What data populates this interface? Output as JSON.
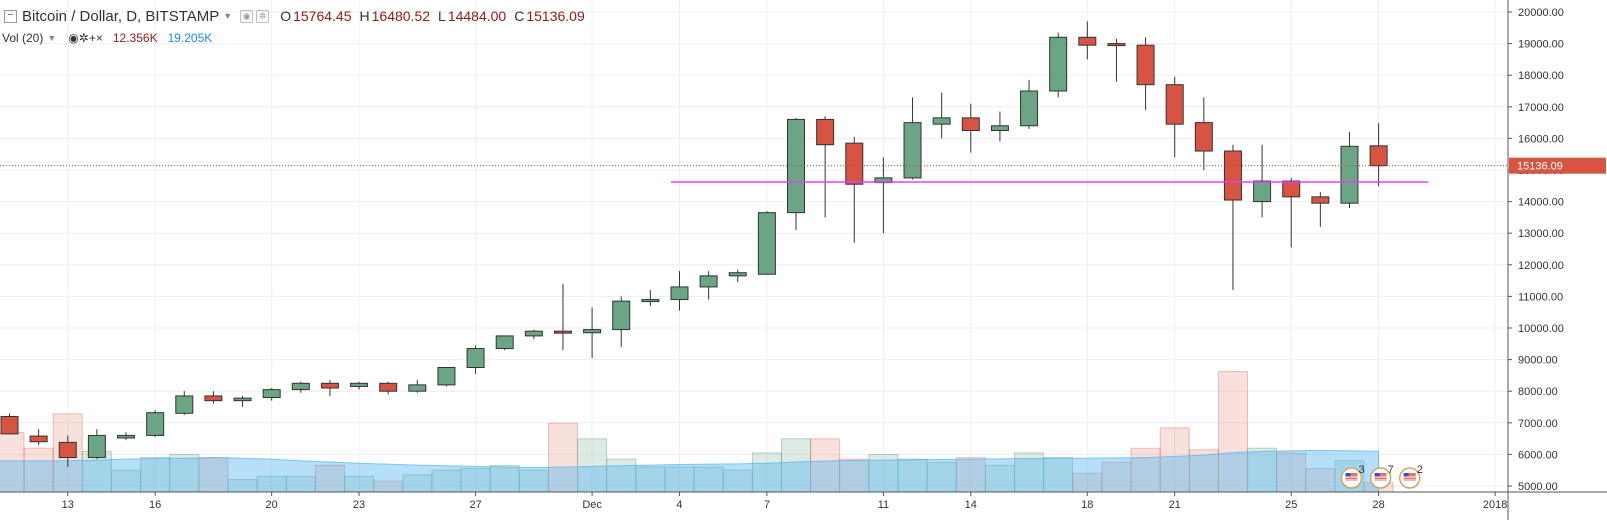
{
  "legend": {
    "symbol": "Bitcoin / Dollar, D, BITSTAMP",
    "open_label": "O",
    "open": "15764.45",
    "high_label": "H",
    "high": "16480.52",
    "low_label": "L",
    "low": "14484.00",
    "close_label": "C",
    "close": "15136.09"
  },
  "volume_legend": {
    "label": "Vol (20)",
    "value1": "12.356K",
    "value2": "19.205K"
  },
  "chart_data": {
    "type": "candlestick",
    "ylim": [
      4800,
      20300
    ],
    "y_ticks": [
      5000,
      6000,
      7000,
      8000,
      9000,
      10000,
      11000,
      12000,
      13000,
      14000,
      15000,
      16000,
      17000,
      18000,
      19000,
      20000
    ],
    "x_tick_labels": [
      {
        "label": "13",
        "day": 2
      },
      {
        "label": "16",
        "day": 5
      },
      {
        "label": "20",
        "day": 9
      },
      {
        "label": "23",
        "day": 12
      },
      {
        "label": "27",
        "day": 16
      },
      {
        "label": "Dec",
        "day": 20
      },
      {
        "label": "4",
        "day": 23
      },
      {
        "label": "7",
        "day": 26
      },
      {
        "label": "11",
        "day": 30
      },
      {
        "label": "14",
        "day": 33
      },
      {
        "label": "18",
        "day": 37
      },
      {
        "label": "21",
        "day": 40
      },
      {
        "label": "25",
        "day": 44
      },
      {
        "label": "28",
        "day": 47
      },
      {
        "label": "2018",
        "day": 51
      }
    ],
    "last_price": 15136.09,
    "last_price_label": "15136.09",
    "support_line": {
      "value": 14620,
      "from_day": 23,
      "to_day": 49
    },
    "up_color": "#6ba583",
    "down_color": "#d75442",
    "candles": [
      {
        "o": 7200,
        "h": 7300,
        "l": 6650,
        "c": 6650
      },
      {
        "o": 6580,
        "h": 6800,
        "l": 6300,
        "c": 6400
      },
      {
        "o": 6380,
        "h": 6600,
        "l": 5600,
        "c": 5900
      },
      {
        "o": 5900,
        "h": 6800,
        "l": 5850,
        "c": 6600
      },
      {
        "o": 6520,
        "h": 6700,
        "l": 6450,
        "c": 6600
      },
      {
        "o": 6600,
        "h": 7400,
        "l": 6550,
        "c": 7320
      },
      {
        "o": 7300,
        "h": 8000,
        "l": 7250,
        "c": 7850
      },
      {
        "o": 7850,
        "h": 8000,
        "l": 7600,
        "c": 7700
      },
      {
        "o": 7700,
        "h": 7850,
        "l": 7500,
        "c": 7780
      },
      {
        "o": 7800,
        "h": 8100,
        "l": 7700,
        "c": 8050
      },
      {
        "o": 8050,
        "h": 8300,
        "l": 7950,
        "c": 8250
      },
      {
        "o": 8250,
        "h": 8350,
        "l": 7850,
        "c": 8100
      },
      {
        "o": 8150,
        "h": 8300,
        "l": 8050,
        "c": 8250
      },
      {
        "o": 8250,
        "h": 8300,
        "l": 7900,
        "c": 8000
      },
      {
        "o": 8000,
        "h": 8350,
        "l": 7950,
        "c": 8200
      },
      {
        "o": 8200,
        "h": 8750,
        "l": 8150,
        "c": 8750
      },
      {
        "o": 8750,
        "h": 9450,
        "l": 8550,
        "c": 9350
      },
      {
        "o": 9350,
        "h": 9750,
        "l": 9300,
        "c": 9750
      },
      {
        "o": 9750,
        "h": 9950,
        "l": 9650,
        "c": 9900
      },
      {
        "o": 9900,
        "h": 11400,
        "l": 9300,
        "c": 9850
      },
      {
        "o": 9850,
        "h": 10650,
        "l": 9050,
        "c": 9950
      },
      {
        "o": 9950,
        "h": 11000,
        "l": 9400,
        "c": 10850
      },
      {
        "o": 10850,
        "h": 11200,
        "l": 10700,
        "c": 10900
      },
      {
        "o": 10900,
        "h": 11800,
        "l": 10550,
        "c": 11300
      },
      {
        "o": 11300,
        "h": 11800,
        "l": 10900,
        "c": 11650
      },
      {
        "o": 11650,
        "h": 11850,
        "l": 11450,
        "c": 11750
      },
      {
        "o": 11700,
        "h": 13700,
        "l": 11700,
        "c": 13650
      },
      {
        "o": 13650,
        "h": 16650,
        "l": 13100,
        "c": 16600
      },
      {
        "o": 16600,
        "h": 16700,
        "l": 13500,
        "c": 15800
      },
      {
        "o": 15850,
        "h": 16050,
        "l": 12700,
        "c": 14550
      },
      {
        "o": 14600,
        "h": 15400,
        "l": 13000,
        "c": 14750
      },
      {
        "o": 14750,
        "h": 17300,
        "l": 14700,
        "c": 16500
      },
      {
        "o": 16450,
        "h": 17450,
        "l": 16000,
        "c": 16650
      },
      {
        "o": 16650,
        "h": 17100,
        "l": 15550,
        "c": 16250
      },
      {
        "o": 16250,
        "h": 16850,
        "l": 15900,
        "c": 16400
      },
      {
        "o": 16400,
        "h": 17850,
        "l": 16300,
        "c": 17500
      },
      {
        "o": 17500,
        "h": 19350,
        "l": 17300,
        "c": 19200
      },
      {
        "o": 19200,
        "h": 19700,
        "l": 18500,
        "c": 18950
      },
      {
        "o": 19000,
        "h": 19150,
        "l": 17800,
        "c": 18950
      },
      {
        "o": 18950,
        "h": 19200,
        "l": 16900,
        "c": 17700
      },
      {
        "o": 17700,
        "h": 17950,
        "l": 15400,
        "c": 16450
      },
      {
        "o": 16500,
        "h": 17300,
        "l": 15000,
        "c": 15600
      },
      {
        "o": 15600,
        "h": 15800,
        "l": 11200,
        "c": 14050
      },
      {
        "o": 14000,
        "h": 15800,
        "l": 13500,
        "c": 14650
      },
      {
        "o": 14650,
        "h": 14750,
        "l": 12550,
        "c": 14150
      },
      {
        "o": 14150,
        "h": 14300,
        "l": 13200,
        "c": 13950
      },
      {
        "o": 13950,
        "h": 16200,
        "l": 13800,
        "c": 15750
      },
      {
        "o": 15764.45,
        "h": 16480.52,
        "l": 14484.0,
        "c": 15136.09
      }
    ],
    "volumes": [
      6700,
      6200,
      7300,
      6100,
      5500,
      5900,
      6000,
      5900,
      5200,
      5300,
      5300,
      5650,
      5300,
      5150,
      5350,
      5500,
      5550,
      5650,
      5500,
      7000,
      6500,
      5850,
      5600,
      5600,
      5600,
      5500,
      6050,
      6500,
      6500,
      5850,
      6000,
      5850,
      5750,
      5900,
      5650,
      6050,
      5900,
      5400,
      5750,
      6200,
      6850,
      6150,
      8650,
      6200,
      6050,
      5550,
      5800,
      5100
    ],
    "volume_ma": [
      5800,
      5800,
      5800,
      5820,
      5850,
      5870,
      5880,
      5900,
      5880,
      5850,
      5800,
      5760,
      5720,
      5690,
      5660,
      5640,
      5620,
      5600,
      5580,
      5600,
      5620,
      5640,
      5660,
      5680,
      5690,
      5700,
      5720,
      5760,
      5790,
      5810,
      5820,
      5830,
      5840,
      5850,
      5860,
      5870,
      5880,
      5880,
      5890,
      5900,
      5940,
      5980,
      6060,
      6100,
      6120,
      6130,
      6120,
      6100
    ],
    "volume_ylim": [
      4800,
      8700
    ],
    "annotations": [
      {
        "day": 46,
        "count": "3"
      },
      {
        "day": 47,
        "count": "7"
      },
      {
        "day": 48,
        "count": "2"
      }
    ]
  }
}
